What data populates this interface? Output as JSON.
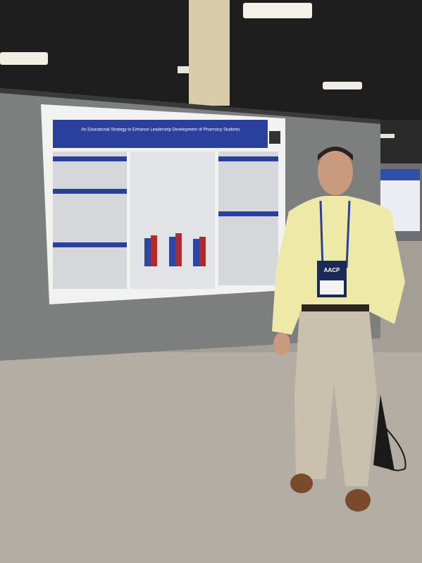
{
  "poster": {
    "title": "An Educational Strategy to Enhance Leadership Development of Pharmacy Students"
  },
  "badge": {
    "organization": "AACP"
  }
}
